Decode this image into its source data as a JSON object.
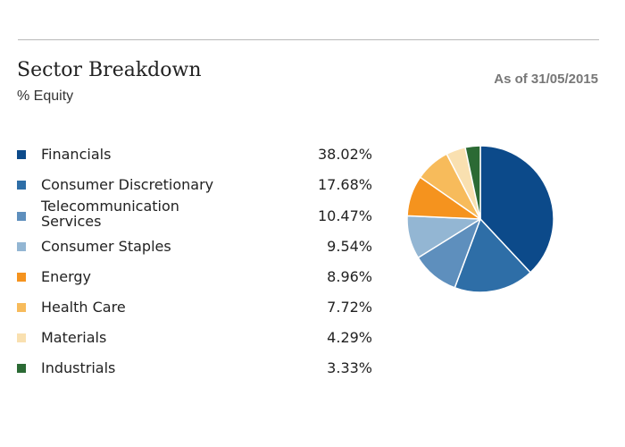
{
  "header": {
    "title": "Sector Breakdown",
    "subtitle": "% Equity",
    "as_of": "As of 31/05/2015"
  },
  "legend": [
    {
      "label": "Financials",
      "value": "38.02%",
      "color": "#0c4a8a"
    },
    {
      "label": "Consumer Discretionary",
      "value": "17.68%",
      "color": "#2e6ea7"
    },
    {
      "label": "Telecommunication Services",
      "value": "10.47%",
      "color": "#5e8fbd"
    },
    {
      "label": "Consumer Staples",
      "value": "9.54%",
      "color": "#93b6d3"
    },
    {
      "label": "Energy",
      "value": "8.96%",
      "color": "#f5931e"
    },
    {
      "label": "Health Care",
      "value": "7.72%",
      "color": "#f7bb5b"
    },
    {
      "label": "Materials",
      "value": "4.29%",
      "color": "#f9e0b0"
    },
    {
      "label": "Industrials",
      "value": "3.33%",
      "color": "#2b6a34"
    }
  ],
  "chart_data": {
    "type": "pie",
    "title": "Sector Breakdown",
    "subtitle": "% Equity",
    "categories": [
      "Financials",
      "Consumer Discretionary",
      "Telecommunication Services",
      "Consumer Staples",
      "Energy",
      "Health Care",
      "Materials",
      "Industrials"
    ],
    "values": [
      38.02,
      17.68,
      10.47,
      9.54,
      8.96,
      7.72,
      4.29,
      3.33
    ],
    "colors": [
      "#0c4a8a",
      "#2e6ea7",
      "#5e8fbd",
      "#93b6d3",
      "#f5931e",
      "#f7bb5b",
      "#f9e0b0",
      "#2b6a34"
    ],
    "unit": "%",
    "legend": "left"
  }
}
